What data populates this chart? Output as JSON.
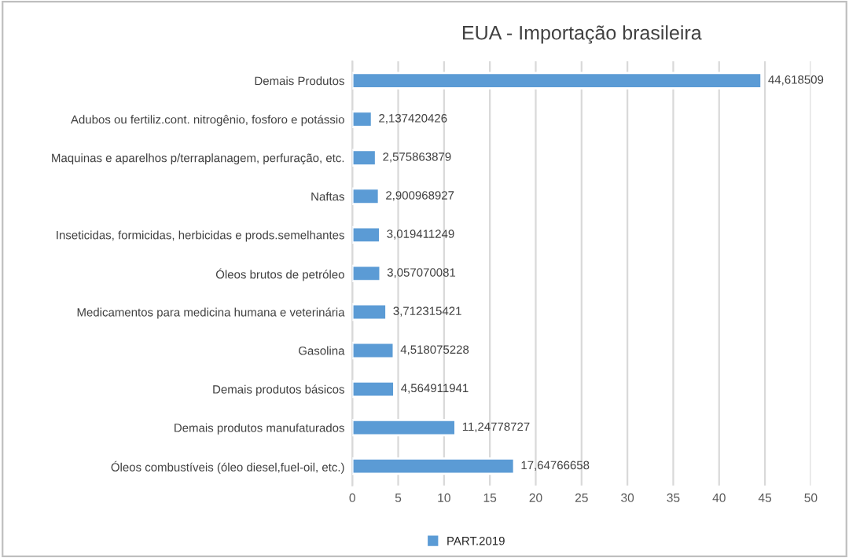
{
  "chart_data": {
    "type": "bar",
    "orientation": "horizontal",
    "title": "EUA - Importação brasileira",
    "categories": [
      "Demais Produtos",
      "Adubos ou fertiliz.cont. nitrogênio, fosforo e potássio",
      "Maquinas e aparelhos p/terraplanagem, perfuração, etc.",
      "Naftas",
      "Inseticidas, formicidas, herbicidas e prods.semelhantes",
      "Óleos brutos de petróleo",
      "Medicamentos para medicina humana e veterinária",
      "Gasolina",
      "Demais produtos básicos",
      "Demais produtos manufaturados",
      "Óleos combustíveis (óleo diesel,fuel-oil, etc.)"
    ],
    "series": [
      {
        "name": "PART.2019",
        "color": "#5b9bd5",
        "values": [
          44.618509,
          2.137420426,
          2.575863879,
          2.900968927,
          3.019411249,
          3.057070081,
          3.712315421,
          4.518075228,
          4.564911941,
          11.24778727,
          17.64766658
        ],
        "value_labels": [
          "44,618509",
          "2,137420426",
          "2,575863879",
          "2,900968927",
          "3,019411249",
          "3,057070081",
          "3,712315421",
          "4,518075228",
          "4,564911941",
          "11,24778727",
          "17,64766658"
        ]
      }
    ],
    "xlim": [
      0,
      50
    ],
    "xticks": [
      0,
      5,
      10,
      15,
      20,
      25,
      30,
      35,
      40,
      45,
      50
    ],
    "grid": "x",
    "legend": "bottom"
  }
}
